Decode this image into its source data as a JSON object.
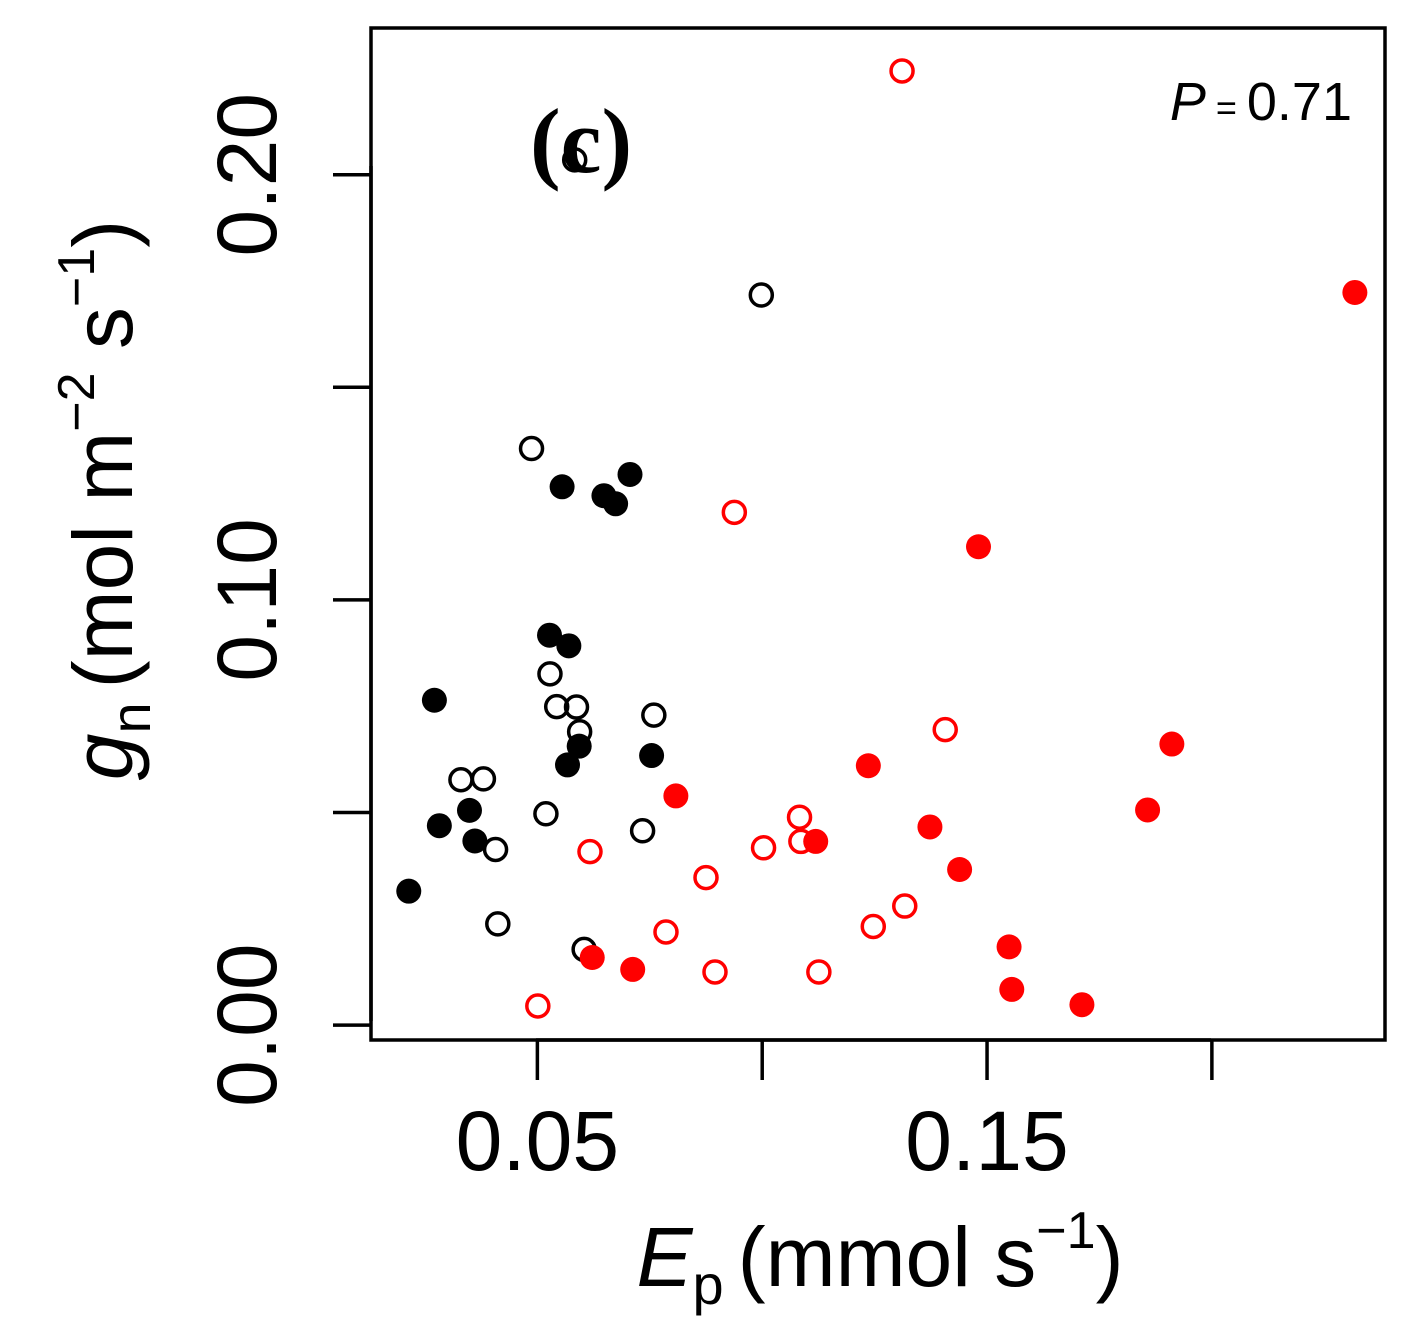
{
  "chart_data": {
    "type": "scatter",
    "panel_label": "(c)",
    "annotation": {
      "label": "P",
      "sep": " = ",
      "value": "0.71"
    },
    "xlabel": {
      "symbol": "E",
      "subscript": "p",
      "unit": "(mmol s",
      "exponent": "−1",
      "close": ")"
    },
    "ylabel": {
      "symbol": "g",
      "subscript": "n",
      "unit": "(mol m",
      "exp1": "−2",
      "mid": " s",
      "exp2": "−1",
      "close": ")"
    },
    "xlim": [
      0.013,
      0.2385
    ],
    "ylim": [
      -0.0035,
      0.2345
    ],
    "xticks": [
      0.05,
      0.1,
      0.15,
      0.2
    ],
    "xtick_labels": [
      "0.05",
      "",
      "0.15",
      ""
    ],
    "yticks": [
      0.0,
      0.05,
      0.1,
      0.15,
      0.2
    ],
    "ytick_labels": [
      "0.00",
      "",
      "0.10",
      "",
      "0.20"
    ],
    "colors": {
      "group1": "#000000",
      "group2": "#ff0000"
    },
    "series": [
      {
        "name": "black-open",
        "color": "#000000",
        "filled": false,
        "points": [
          [
            0.0583,
            0.2035
          ],
          [
            0.0998,
            0.1717
          ],
          [
            0.0487,
            0.1356
          ],
          [
            0.0528,
            0.0826
          ],
          [
            0.0543,
            0.0749
          ],
          [
            0.0587,
            0.0748
          ],
          [
            0.0594,
            0.069
          ],
          [
            0.0759,
            0.0729
          ],
          [
            0.033,
            0.0577
          ],
          [
            0.038,
            0.0579
          ],
          [
            0.0519,
            0.0497
          ],
          [
            0.0734,
            0.0457
          ],
          [
            0.0407,
            0.0413
          ],
          [
            0.0412,
            0.0238
          ],
          [
            0.0604,
            0.0178
          ]
        ]
      },
      {
        "name": "black-filled",
        "color": "#000000",
        "filled": true,
        "points": [
          [
            0.0555,
            0.1266
          ],
          [
            0.0648,
            0.1245
          ],
          [
            0.0674,
            0.1226
          ],
          [
            0.0706,
            0.1295
          ],
          [
            0.0527,
            0.0917
          ],
          [
            0.057,
            0.0892
          ],
          [
            0.0271,
            0.0764
          ],
          [
            0.0593,
            0.0656
          ],
          [
            0.0567,
            0.0612
          ],
          [
            0.0754,
            0.0634
          ],
          [
            0.0349,
            0.0505
          ],
          [
            0.0282,
            0.0469
          ],
          [
            0.0361,
            0.0433
          ],
          [
            0.0214,
            0.0315
          ]
        ]
      },
      {
        "name": "red-open",
        "color": "#ff0000",
        "filled": false,
        "points": [
          [
            0.1311,
            0.2244
          ],
          [
            0.0938,
            0.1206
          ],
          [
            0.1407,
            0.0695
          ],
          [
            0.1083,
            0.0489
          ],
          [
            0.0617,
            0.0408
          ],
          [
            0.1003,
            0.0417
          ],
          [
            0.1086,
            0.0432
          ],
          [
            0.0875,
            0.0347
          ],
          [
            0.1317,
            0.028
          ],
          [
            0.1247,
            0.0232
          ],
          [
            0.0786,
            0.0219
          ],
          [
            0.0895,
            0.0125
          ],
          [
            0.1126,
            0.0125
          ],
          [
            0.0501,
            0.0045
          ]
        ]
      },
      {
        "name": "red-filled",
        "color": "#ff0000",
        "filled": true,
        "points": [
          [
            0.2318,
            0.1723
          ],
          [
            0.1481,
            0.1125
          ],
          [
            0.1911,
            0.0661
          ],
          [
            0.1236,
            0.061
          ],
          [
            0.0808,
            0.0539
          ],
          [
            0.1857,
            0.0506
          ],
          [
            0.1373,
            0.0466
          ],
          [
            0.1119,
            0.0432
          ],
          [
            0.1439,
            0.0366
          ],
          [
            0.1549,
            0.0184
          ],
          [
            0.0622,
            0.0159
          ],
          [
            0.0712,
            0.0131
          ],
          [
            0.1555,
            0.0084
          ],
          [
            0.1711,
            0.0048
          ]
        ]
      }
    ]
  }
}
